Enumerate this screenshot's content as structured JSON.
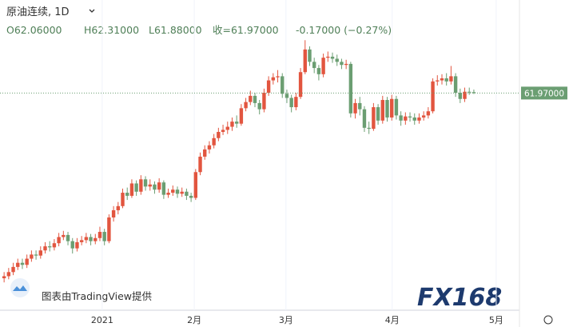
{
  "chart_data": {
    "type": "candlestick",
    "title": "原油连续, 1D",
    "ohlc_text": [
      "O62.06000",
      "H62.31000",
      "L61.88000",
      "收=61.97000",
      "-0.17000 (−0.27%)"
    ],
    "last_price": 61.97,
    "last_price_label": "61.97000",
    "watermark": "图表由TradingView提供",
    "logo": "FX168",
    "up_color": "#e2553f",
    "down_color": "#6b9e72",
    "ylim": [
      40.9,
      71.0
    ],
    "xlim": [
      -0.9,
      113
    ],
    "xticks": [
      {
        "value": 21.5,
        "label": "2021"
      },
      {
        "value": 41.7,
        "label": "2月"
      },
      {
        "value": 61.8,
        "label": "3月"
      },
      {
        "value": 85.1,
        "label": "4月"
      },
      {
        "value": 107.9,
        "label": "5月"
      }
    ],
    "open": [
      44.0,
      44.2,
      44.6,
      45.1,
      45.5,
      45.3,
      45.9,
      46.3,
      46.2,
      46.7,
      47.1,
      47.0,
      47.4,
      48.0,
      48.2,
      47.6,
      46.9,
      47.5,
      47.7,
      48.0,
      47.6,
      47.9,
      48.5,
      47.6,
      49.9,
      50.6,
      51.0,
      52.3,
      52.0,
      53.2,
      52.4,
      53.6,
      52.9,
      53.1,
      52.6,
      53.3,
      52.1,
      52.3,
      52.6,
      52.2,
      52.4,
      52.0,
      51.8,
      54.3,
      55.8,
      56.5,
      56.9,
      57.6,
      58.2,
      58.4,
      58.7,
      59.2,
      59.0,
      60.5,
      61.1,
      61.7,
      61.0,
      60.4,
      62.0,
      63.2,
      63.5,
      63.6,
      61.9,
      61.5,
      60.6,
      61.6,
      64.0,
      66.2,
      65.0,
      64.4,
      63.8,
      65.4,
      65.5,
      65.3,
      65.0,
      64.7,
      64.8,
      60.0,
      61.0,
      60.4,
      58.6,
      58.5,
      60.6,
      59.3,
      61.3,
      59.6,
      61.4,
      59.8,
      59.3,
      59.7,
      59.6,
      59.3,
      59.6,
      59.8,
      60.2,
      63.1,
      63.2,
      63.4,
      63.1,
      63.6,
      62.0,
      61.4,
      62.1,
      62.06
    ],
    "high": [
      44.6,
      45.0,
      45.5,
      45.9,
      45.9,
      46.3,
      46.7,
      46.7,
      47.1,
      47.5,
      47.6,
      47.8,
      48.4,
      48.6,
      48.5,
      47.9,
      47.9,
      48.1,
      48.4,
      48.3,
      48.3,
      49.0,
      48.8,
      50.2,
      51.0,
      51.4,
      52.7,
      52.8,
      53.6,
      53.5,
      54.0,
      53.9,
      53.6,
      53.4,
      53.7,
      53.5,
      52.7,
      53.0,
      52.9,
      52.8,
      52.7,
      52.3,
      54.6,
      56.2,
      56.9,
      57.3,
      58.0,
      58.6,
      58.9,
      59.2,
      59.6,
      59.8,
      60.9,
      61.5,
      62.2,
      62.0,
      61.3,
      62.4,
      63.6,
      63.9,
      64.2,
      63.9,
      62.3,
      61.8,
      62.0,
      64.4,
      67.1,
      66.5,
      65.4,
      64.7,
      65.8,
      66.0,
      65.9,
      65.7,
      65.3,
      65.2,
      65.0,
      61.4,
      61.6,
      60.7,
      59.2,
      61.0,
      60.9,
      61.7,
      61.6,
      61.8,
      61.7,
      60.2,
      60.1,
      60.1,
      60.0,
      60.0,
      60.2,
      60.6,
      63.4,
      63.7,
      63.8,
      63.9,
      64.6,
      63.9,
      62.4,
      62.5,
      62.5,
      62.31
    ],
    "low": [
      43.6,
      43.9,
      44.3,
      44.8,
      44.9,
      45.0,
      45.6,
      45.8,
      45.9,
      46.4,
      46.6,
      46.7,
      47.1,
      47.7,
      47.2,
      46.4,
      46.6,
      47.2,
      47.4,
      47.2,
      47.3,
      47.6,
      47.2,
      47.4,
      49.5,
      50.2,
      50.8,
      51.6,
      51.8,
      52.0,
      52.1,
      52.5,
      52.5,
      52.2,
      52.3,
      51.7,
      51.8,
      52.0,
      51.8,
      51.9,
      51.6,
      51.4,
      51.6,
      54.0,
      55.5,
      56.1,
      56.6,
      57.3,
      57.9,
      58.0,
      58.3,
      58.6,
      58.8,
      60.2,
      60.8,
      60.6,
      59.9,
      60.1,
      61.7,
      62.8,
      63.0,
      61.5,
      61.0,
      60.1,
      60.3,
      61.4,
      63.8,
      64.6,
      63.9,
      63.2,
      63.5,
      65.0,
      64.9,
      64.6,
      64.3,
      64.3,
      59.6,
      59.5,
      59.8,
      58.2,
      58.0,
      58.3,
      58.9,
      59.0,
      59.2,
      59.3,
      59.4,
      58.8,
      58.9,
      59.2,
      58.9,
      59.0,
      59.3,
      59.5,
      60.0,
      62.7,
      62.8,
      62.7,
      62.8,
      61.6,
      61.0,
      61.1,
      61.8,
      61.88
    ],
    "close": [
      44.2,
      44.6,
      45.1,
      45.5,
      45.3,
      45.9,
      46.3,
      46.2,
      46.7,
      47.1,
      47.0,
      47.4,
      48.0,
      48.2,
      47.6,
      46.9,
      47.5,
      47.7,
      48.0,
      47.6,
      47.9,
      48.5,
      47.6,
      49.9,
      50.6,
      51.0,
      52.3,
      52.0,
      53.2,
      52.4,
      53.6,
      52.9,
      53.1,
      52.6,
      53.3,
      52.1,
      52.3,
      52.6,
      52.2,
      52.4,
      52.0,
      51.8,
      54.3,
      55.8,
      56.5,
      56.9,
      57.6,
      58.2,
      58.4,
      58.7,
      59.2,
      59.0,
      60.5,
      61.1,
      61.7,
      61.0,
      60.4,
      62.0,
      63.2,
      63.5,
      63.6,
      61.9,
      61.5,
      60.6,
      61.6,
      64.0,
      66.2,
      65.0,
      64.4,
      63.8,
      65.4,
      65.5,
      65.3,
      65.0,
      64.7,
      64.8,
      60.0,
      61.0,
      60.4,
      58.6,
      58.5,
      60.6,
      59.3,
      61.3,
      59.6,
      61.4,
      59.8,
      59.3,
      59.7,
      59.6,
      59.3,
      59.6,
      59.8,
      60.2,
      63.1,
      63.2,
      63.4,
      63.1,
      63.6,
      62.0,
      61.4,
      62.1,
      62.06,
      61.97
    ]
  }
}
